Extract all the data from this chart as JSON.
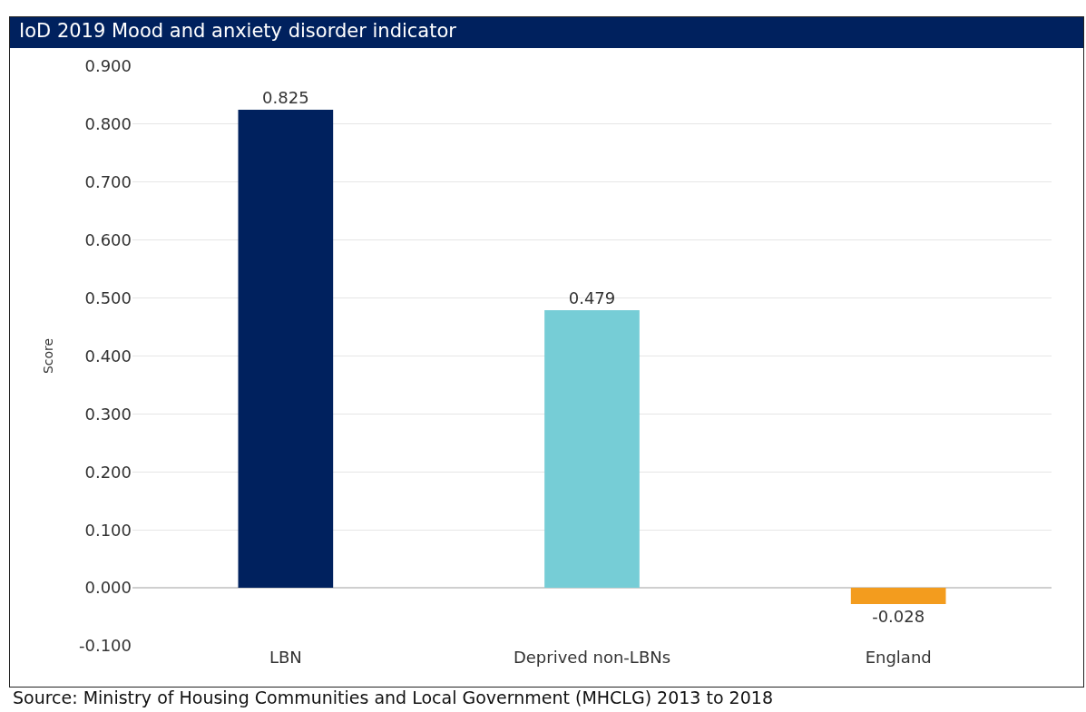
{
  "chart_data": {
    "type": "bar",
    "title": "IoD 2019 Mood and anxiety disorder indicator",
    "ylabel": "Score",
    "categories": [
      "LBN",
      "Deprived non-LBNs",
      "England"
    ],
    "values": [
      0.825,
      0.479,
      -0.028
    ],
    "colors": [
      "#00215e",
      "#76cdd6",
      "#f39c1e"
    ],
    "value_labels": [
      "0.825",
      "0.479",
      "-0.028"
    ],
    "ylim": [
      -0.1,
      0.9
    ],
    "yticks": [
      {
        "value": -0.1,
        "label": "-0.100"
      },
      {
        "value": 0,
        "label": "0.000"
      },
      {
        "value": 0.1,
        "label": "0.100"
      },
      {
        "value": 0.2,
        "label": "0.200"
      },
      {
        "value": 0.3,
        "label": "0.300"
      },
      {
        "value": 0.4,
        "label": "0.400"
      },
      {
        "value": 0.5,
        "label": "0.500"
      },
      {
        "value": 0.6,
        "label": "0.600"
      },
      {
        "value": 0.7,
        "label": "0.700"
      },
      {
        "value": 0.8,
        "label": "0.800"
      },
      {
        "value": 0.9,
        "label": "0.900"
      }
    ],
    "grid": "y",
    "annotations": [
      "Source: Ministry of Housing Communities and Local Government (MHCLG) 2013 to 2018"
    ]
  }
}
